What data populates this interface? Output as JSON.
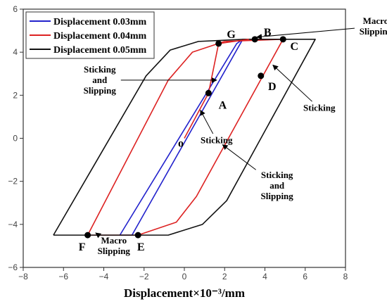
{
  "chart_data": {
    "type": "line",
    "xlabel": "Displacement×10⁻³/mm",
    "ylabel": "",
    "xlim": [
      -8,
      8
    ],
    "ylim": [
      -6,
      6
    ],
    "x_ticks": [
      -8,
      -6,
      -4,
      -2,
      0,
      2,
      4,
      6,
      8
    ],
    "y_ticks": [
      -6,
      -4,
      -2,
      0,
      2,
      4,
      6
    ],
    "grid": false,
    "legend_position": "top-left",
    "series": [
      {
        "name": "Displacement 0.03mm",
        "color": "#2222cc",
        "points": [
          [
            -3.2,
            -4.5
          ],
          [
            2.6,
            4.4
          ],
          [
            2.9,
            4.6
          ],
          [
            -2.6,
            -4.5
          ],
          [
            -3.2,
            -4.5
          ]
        ]
      },
      {
        "name": "Displacement 0.04mm",
        "color": "#dd2222",
        "points": [
          [
            -4.8,
            -4.5
          ],
          [
            -0.8,
            2.7
          ],
          [
            0.4,
            4.0
          ],
          [
            2.0,
            4.5
          ],
          [
            4.9,
            4.6
          ],
          [
            0.6,
            -2.7
          ],
          [
            -0.4,
            -3.9
          ],
          [
            -2.3,
            -4.5
          ],
          [
            -4.8,
            -4.5
          ]
        ]
      },
      {
        "name": "Displacement 0.05mm",
        "color": "#111111",
        "points": [
          [
            -6.5,
            -4.5
          ],
          [
            -1.9,
            2.9
          ],
          [
            -0.7,
            4.1
          ],
          [
            0.7,
            4.5
          ],
          [
            3.0,
            4.6
          ],
          [
            6.5,
            4.6
          ],
          [
            2.1,
            -2.9
          ],
          [
            0.9,
            -4.0
          ],
          [
            -0.8,
            -4.5
          ],
          [
            -6.5,
            -4.5
          ]
        ]
      }
    ],
    "initial_loading": {
      "color": "#dd2222",
      "points": [
        [
          0,
          0
        ],
        [
          1.2,
          2.1
        ],
        [
          1.7,
          4.4
        ],
        [
          3.2,
          4.6
        ]
      ]
    },
    "labeled_points": [
      {
        "label": "o",
        "x": 0,
        "y": 0,
        "marker": false,
        "label_dx": -5,
        "label_dy": 12
      },
      {
        "label": "A",
        "x": 1.2,
        "y": 2.1,
        "marker": true,
        "label_dx": 20,
        "label_dy": 22
      },
      {
        "label": "G",
        "x": 1.7,
        "y": 4.4,
        "marker": true,
        "label_dx": 18,
        "label_dy": -8
      },
      {
        "label": "B",
        "x": 3.5,
        "y": 4.6,
        "marker": true,
        "label_dx": 18,
        "label_dy": -5
      },
      {
        "label": "C",
        "x": 4.9,
        "y": 4.6,
        "marker": true,
        "label_dx": 16,
        "label_dy": 15
      },
      {
        "label": "D",
        "x": 3.8,
        "y": 2.9,
        "marker": true,
        "label_dx": 16,
        "label_dy": 20
      },
      {
        "label": "E",
        "x": -2.3,
        "y": -4.5,
        "marker": true,
        "label_dx": 4,
        "label_dy": 22
      },
      {
        "label": "F",
        "x": -4.8,
        "y": -4.5,
        "marker": true,
        "label_dx": -8,
        "label_dy": 22
      }
    ],
    "annotations": [
      {
        "lines": [
          "Macro",
          "Slipping"
        ],
        "text_x": 9.5,
        "text_y": 5.2,
        "arrow_to": [
          3.6,
          4.7
        ]
      },
      {
        "lines": [
          "Sticking",
          "and",
          "Slipping"
        ],
        "text_x": -4.2,
        "text_y": 2.7,
        "arrow_to": [
          1.6,
          2.7
        ]
      },
      {
        "lines": [
          "Sticking"
        ],
        "text_x": 6.7,
        "text_y": 1.4,
        "arrow_to": [
          4.4,
          3.4
        ]
      },
      {
        "lines": [
          "Sticking"
        ],
        "text_x": 1.6,
        "text_y": -0.1,
        "arrow_to": [
          0.8,
          1.3
        ]
      },
      {
        "lines": [
          "Sticking",
          "and",
          "Slipping"
        ],
        "text_x": 4.6,
        "text_y": -2.2,
        "arrow_to": [
          1.9,
          -0.3
        ]
      },
      {
        "lines": [
          "Macro",
          "Slipping"
        ],
        "text_x": -3.5,
        "text_y": -5.0,
        "arrow_to": [
          -4.4,
          -4.4
        ]
      }
    ]
  }
}
